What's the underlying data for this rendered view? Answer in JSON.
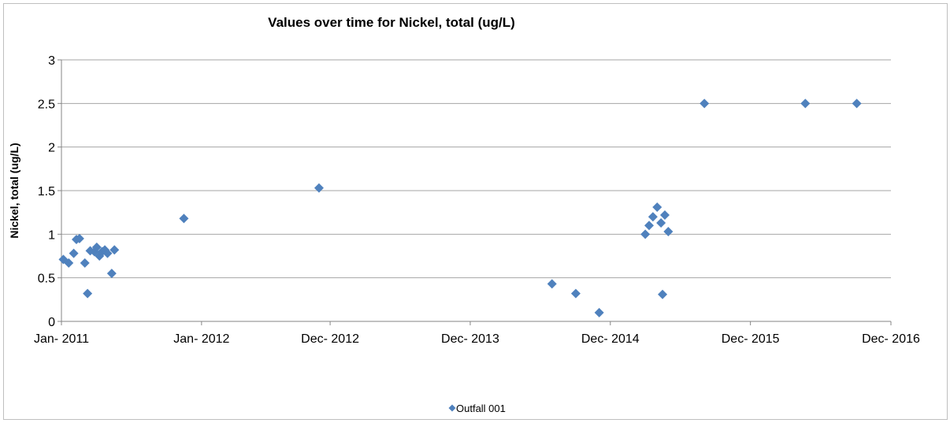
{
  "chart_data": {
    "type": "scatter",
    "title": "Values over time for Nickel, total (ug/L)",
    "xlabel": "",
    "ylabel": "Nickel, total (ug/L)",
    "ylim": [
      0,
      3
    ],
    "yticks": [
      "0",
      "0.5",
      "1",
      "1.5",
      "2",
      "2.5",
      "3"
    ],
    "xlim": [
      "2011-01-01",
      "2016-12-01"
    ],
    "xtick_dates": [
      "2011-01-01",
      "2012-01-01",
      "2012-12-01",
      "2013-12-01",
      "2014-12-01",
      "2015-12-01",
      "2016-12-01"
    ],
    "xticks": [
      "Jan- 2011",
      "Jan- 2012",
      "Dec- 2012",
      "Dec- 2013",
      "Dec- 2014",
      "Dec- 2015",
      "Dec- 2016"
    ],
    "grid": true,
    "legend_position": "bottom",
    "series": [
      {
        "name": "Outfall 001",
        "color": "#4f81bd",
        "marker": "diamond",
        "points": [
          {
            "x": "2011-01-06",
            "y": 0.71
          },
          {
            "x": "2011-01-20",
            "y": 0.67
          },
          {
            "x": "2011-02-02",
            "y": 0.78
          },
          {
            "x": "2011-02-09",
            "y": 0.94
          },
          {
            "x": "2011-02-17",
            "y": 0.95
          },
          {
            "x": "2011-03-03",
            "y": 0.67
          },
          {
            "x": "2011-03-10",
            "y": 0.32
          },
          {
            "x": "2011-03-17",
            "y": 0.81
          },
          {
            "x": "2011-03-28",
            "y": 0.8
          },
          {
            "x": "2011-04-03",
            "y": 0.85
          },
          {
            "x": "2011-04-10",
            "y": 0.75
          },
          {
            "x": "2011-04-17",
            "y": 0.8
          },
          {
            "x": "2011-04-24",
            "y": 0.82
          },
          {
            "x": "2011-05-01",
            "y": 0.78
          },
          {
            "x": "2011-05-12",
            "y": 0.55
          },
          {
            "x": "2011-05-19",
            "y": 0.82
          },
          {
            "x": "2011-11-16",
            "y": 1.18
          },
          {
            "x": "2012-11-02",
            "y": 1.53
          },
          {
            "x": "2014-07-02",
            "y": 0.43
          },
          {
            "x": "2014-09-02",
            "y": 0.32
          },
          {
            "x": "2014-11-02",
            "y": 0.1
          },
          {
            "x": "2015-03-02",
            "y": 1.0
          },
          {
            "x": "2015-03-12",
            "y": 1.1
          },
          {
            "x": "2015-03-22",
            "y": 1.2
          },
          {
            "x": "2015-04-02",
            "y": 1.31
          },
          {
            "x": "2015-04-12",
            "y": 1.13
          },
          {
            "x": "2015-04-16",
            "y": 0.31
          },
          {
            "x": "2015-04-22",
            "y": 1.22
          },
          {
            "x": "2015-05-01",
            "y": 1.03
          },
          {
            "x": "2015-08-03",
            "y": 2.5
          },
          {
            "x": "2016-04-22",
            "y": 2.5
          },
          {
            "x": "2016-09-03",
            "y": 2.5
          }
        ]
      }
    ]
  }
}
